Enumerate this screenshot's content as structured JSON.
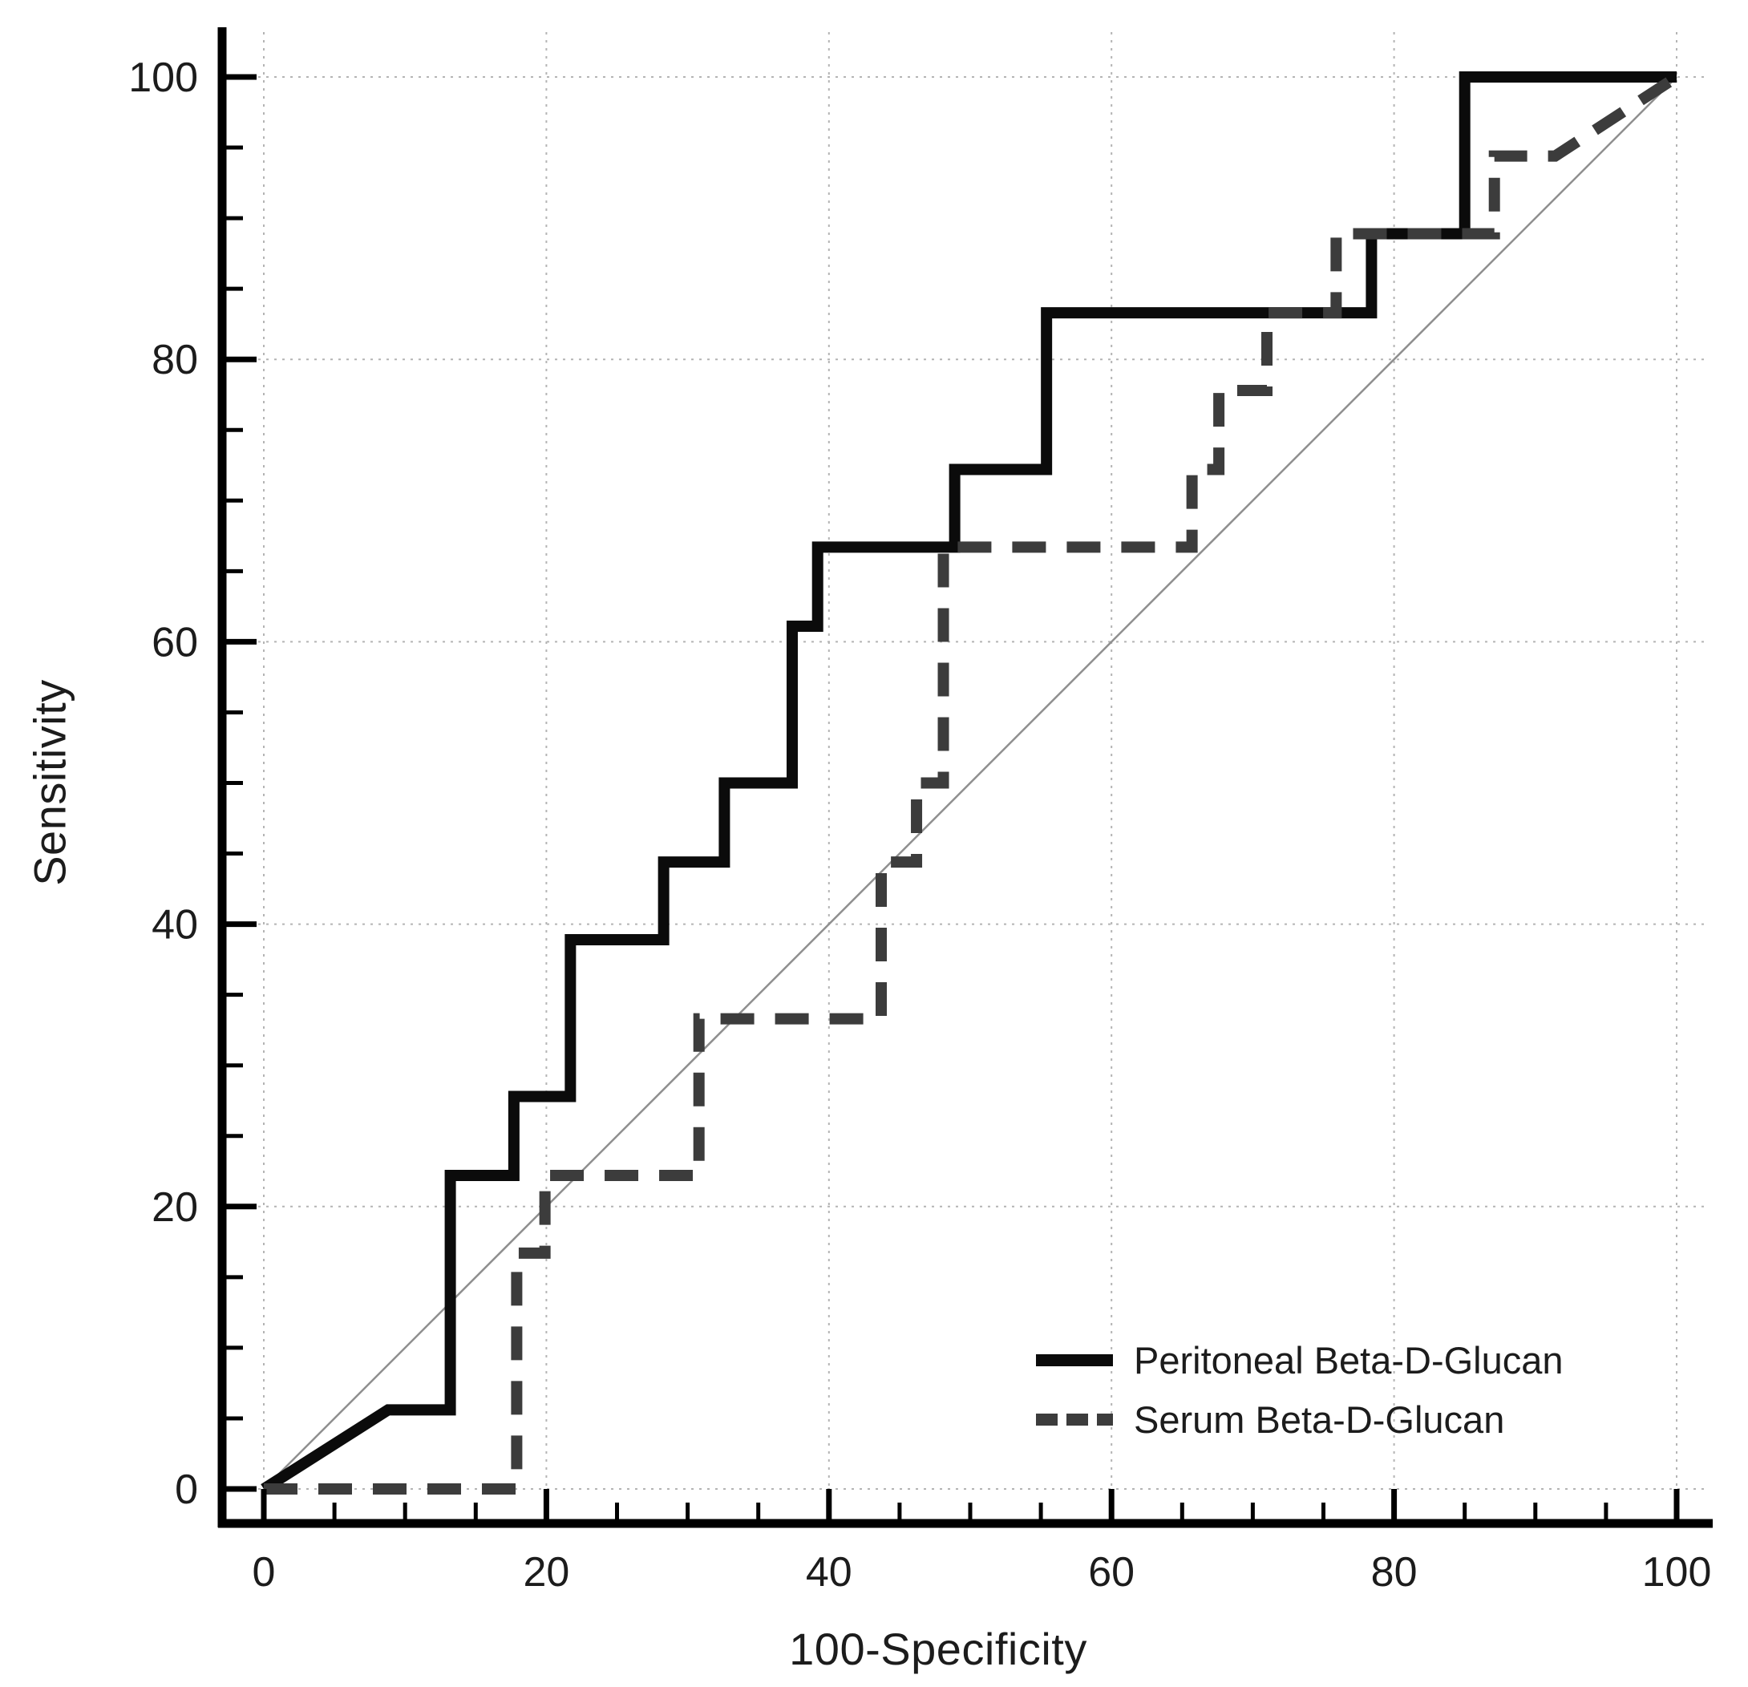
{
  "figure": {
    "background": "#ffffff",
    "axis_color": "#000000",
    "grid_color": "#b4b4b4",
    "diagonal_color": "#8f8f8f",
    "tick_label_color": "#1c1c1c"
  },
  "chart_data": {
    "type": "line",
    "subtype": "roc-step-curves",
    "title": "",
    "xlabel": "100-Specificity",
    "ylabel": "Sensitivity",
    "xlim": [
      0,
      100
    ],
    "ylim": [
      0,
      100
    ],
    "x_major_ticks": [
      0,
      20,
      40,
      60,
      80,
      100
    ],
    "y_major_ticks": [
      0,
      20,
      40,
      60,
      80,
      100
    ],
    "minor_tick_step": 5,
    "grid": "dotted-at-major-ticks",
    "legend_position": "lower-right",
    "reference_line": {
      "name": "chance-diagonal",
      "from": [
        0,
        0
      ],
      "to": [
        100,
        100
      ]
    },
    "series": [
      {
        "name": "Peritoneal Beta-D-Glucan",
        "style": "solid",
        "color": "#0b0b0b",
        "points": [
          [
            0,
            0
          ],
          [
            8.8,
            5.6
          ],
          [
            13.2,
            5.6
          ],
          [
            13.2,
            22.2
          ],
          [
            17.7,
            22.2
          ],
          [
            17.7,
            27.8
          ],
          [
            21.7,
            27.8
          ],
          [
            21.7,
            38.9
          ],
          [
            28.3,
            38.9
          ],
          [
            28.3,
            44.4
          ],
          [
            32.6,
            44.4
          ],
          [
            32.6,
            50
          ],
          [
            37.4,
            50
          ],
          [
            37.4,
            61.1
          ],
          [
            39.2,
            61.1
          ],
          [
            39.2,
            66.7
          ],
          [
            48.9,
            66.7
          ],
          [
            48.9,
            72.2
          ],
          [
            55.4,
            72.2
          ],
          [
            55.4,
            83.3
          ],
          [
            78.4,
            83.3
          ],
          [
            78.4,
            88.9
          ],
          [
            85,
            88.9
          ],
          [
            85,
            100
          ],
          [
            100,
            100
          ]
        ]
      },
      {
        "name": "Serum Beta-D-Glucan",
        "style": "dashed",
        "color": "#3c3c3c",
        "points": [
          [
            0,
            0
          ],
          [
            17.9,
            0
          ],
          [
            17.9,
            16.7
          ],
          [
            19.9,
            16.7
          ],
          [
            19.9,
            22.2
          ],
          [
            30.8,
            22.2
          ],
          [
            30.8,
            33.3
          ],
          [
            43.7,
            33.3
          ],
          [
            43.7,
            44.4
          ],
          [
            46.2,
            44.4
          ],
          [
            46.2,
            50
          ],
          [
            48.1,
            50
          ],
          [
            48.1,
            66.7
          ],
          [
            65.7,
            66.7
          ],
          [
            65.7,
            72.2
          ],
          [
            67.6,
            72.2
          ],
          [
            67.6,
            77.8
          ],
          [
            71,
            77.8
          ],
          [
            71,
            83.3
          ],
          [
            75.9,
            83.3
          ],
          [
            75.9,
            88.9
          ],
          [
            87.1,
            88.9
          ],
          [
            87.1,
            94.4
          ],
          [
            91.4,
            94.4
          ],
          [
            100,
            100
          ]
        ]
      }
    ]
  }
}
